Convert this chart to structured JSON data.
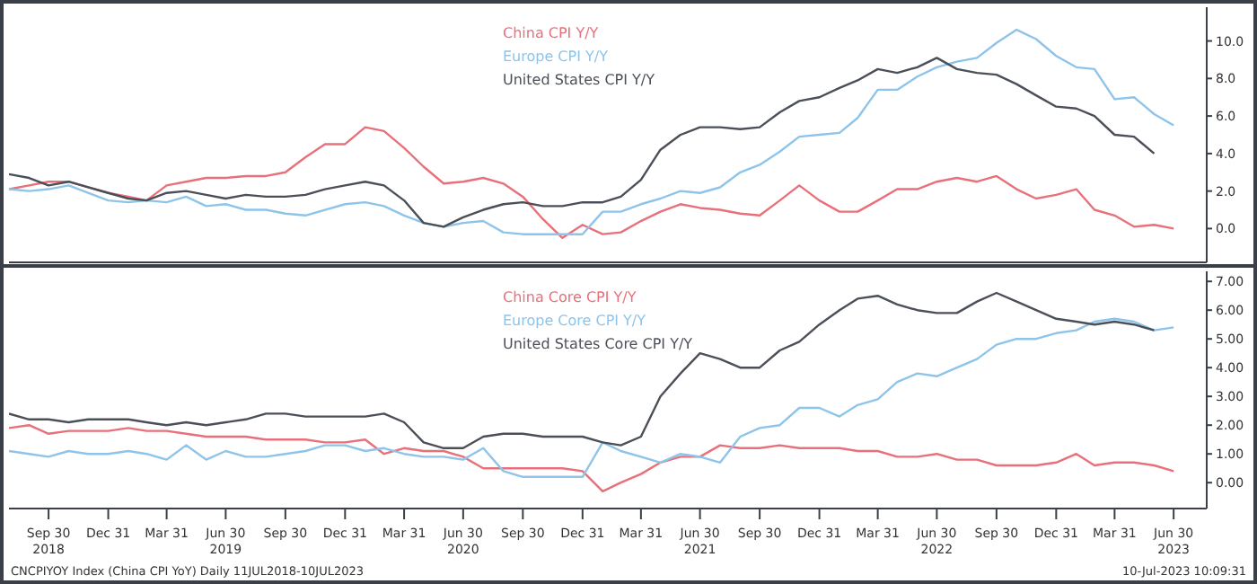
{
  "chart_data": [
    {
      "type": "line",
      "legend": "top",
      "tick_labels": "y",
      "x": [
        "2018-07-31",
        "2018-08-31",
        "2018-09-30",
        "2018-10-31",
        "2018-11-30",
        "2018-12-31",
        "2019-01-31",
        "2019-02-28",
        "2019-03-31",
        "2019-04-30",
        "2019-05-31",
        "2019-06-30",
        "2019-07-31",
        "2019-08-31",
        "2019-09-30",
        "2019-10-31",
        "2019-11-30",
        "2019-12-31",
        "2020-01-31",
        "2020-02-29",
        "2020-03-31",
        "2020-04-30",
        "2020-05-31",
        "2020-06-30",
        "2020-07-31",
        "2020-08-31",
        "2020-09-30",
        "2020-10-31",
        "2020-11-30",
        "2020-12-31",
        "2021-01-31",
        "2021-02-28",
        "2021-03-31",
        "2021-04-30",
        "2021-05-31",
        "2021-06-30",
        "2021-07-31",
        "2021-08-31",
        "2021-09-30",
        "2021-10-31",
        "2021-11-30",
        "2021-12-31",
        "2022-01-31",
        "2022-02-28",
        "2022-03-31",
        "2022-04-30",
        "2022-05-31",
        "2022-06-30",
        "2022-07-31",
        "2022-08-31",
        "2022-09-30",
        "2022-10-31",
        "2022-11-30",
        "2022-12-31",
        "2023-01-31",
        "2023-02-28",
        "2023-03-31",
        "2023-04-30",
        "2023-05-31",
        "2023-06-30"
      ],
      "series": [
        {
          "name": "China CPI Y/Y",
          "color": "#e8707a",
          "values": [
            2.1,
            2.3,
            2.5,
            2.5,
            2.2,
            1.9,
            1.7,
            1.5,
            2.3,
            2.5,
            2.7,
            2.7,
            2.8,
            2.8,
            3.0,
            3.8,
            4.5,
            4.5,
            5.4,
            5.2,
            4.3,
            3.3,
            2.4,
            2.5,
            2.7,
            2.4,
            1.7,
            0.5,
            -0.5,
            0.2,
            -0.3,
            -0.2,
            0.4,
            0.9,
            1.3,
            1.1,
            1.0,
            0.8,
            0.7,
            1.5,
            2.3,
            1.5,
            0.9,
            0.9,
            1.5,
            2.1,
            2.1,
            2.5,
            2.7,
            2.5,
            2.8,
            2.1,
            1.6,
            1.8,
            2.1,
            1.0,
            0.7,
            0.1,
            0.2,
            0.0
          ]
        },
        {
          "name": "Europe CPI Y/Y",
          "color": "#8ec4ea",
          "values": [
            2.1,
            2.0,
            2.1,
            2.3,
            1.9,
            1.5,
            1.4,
            1.5,
            1.4,
            1.7,
            1.2,
            1.3,
            1.0,
            1.0,
            0.8,
            0.7,
            1.0,
            1.3,
            1.4,
            1.2,
            0.7,
            0.3,
            0.1,
            0.3,
            0.4,
            -0.2,
            -0.3,
            -0.3,
            -0.3,
            -0.3,
            0.9,
            0.9,
            1.3,
            1.6,
            2.0,
            1.9,
            2.2,
            3.0,
            3.4,
            4.1,
            4.9,
            5.0,
            5.1,
            5.9,
            7.4,
            7.4,
            8.1,
            8.6,
            8.9,
            9.1,
            9.9,
            10.6,
            10.1,
            9.2,
            8.6,
            8.5,
            6.9,
            7.0,
            6.1,
            5.5
          ]
        },
        {
          "name": "United States CPI Y/Y",
          "color": "#4a4f58",
          "values": [
            2.9,
            2.7,
            2.3,
            2.5,
            2.2,
            1.9,
            1.6,
            1.5,
            1.9,
            2.0,
            1.8,
            1.6,
            1.8,
            1.7,
            1.7,
            1.8,
            2.1,
            2.3,
            2.5,
            2.3,
            1.5,
            0.3,
            0.1,
            0.6,
            1.0,
            1.3,
            1.4,
            1.2,
            1.2,
            1.4,
            1.4,
            1.7,
            2.6,
            4.2,
            5.0,
            5.4,
            5.4,
            5.3,
            5.4,
            6.2,
            6.8,
            7.0,
            7.5,
            7.9,
            8.5,
            8.3,
            8.6,
            9.1,
            8.5,
            8.3,
            8.2,
            7.7,
            7.1,
            6.5,
            6.4,
            6.0,
            5.0,
            4.9,
            4.0,
            null
          ]
        }
      ],
      "xlim": [
        "2018-07-31",
        "2023-08-20"
      ],
      "ylim": [
        -1.8,
        11.8
      ],
      "yticks": [
        {
          "value": 0,
          "label": "0.0"
        },
        {
          "value": 2,
          "label": "2.0"
        },
        {
          "value": 4,
          "label": "4.0"
        },
        {
          "value": 6,
          "label": "6.0"
        },
        {
          "value": 8,
          "label": "8.0"
        },
        {
          "value": 10,
          "label": "10.0"
        }
      ]
    },
    {
      "type": "line",
      "legend": "top",
      "x": [
        "2018-07-31",
        "2018-08-31",
        "2018-09-30",
        "2018-10-31",
        "2018-11-30",
        "2018-12-31",
        "2019-01-31",
        "2019-02-28",
        "2019-03-31",
        "2019-04-30",
        "2019-05-31",
        "2019-06-30",
        "2019-07-31",
        "2019-08-31",
        "2019-09-30",
        "2019-10-31",
        "2019-11-30",
        "2019-12-31",
        "2020-01-31",
        "2020-02-29",
        "2020-03-31",
        "2020-04-30",
        "2020-05-31",
        "2020-06-30",
        "2020-07-31",
        "2020-08-31",
        "2020-09-30",
        "2020-10-31",
        "2020-11-30",
        "2020-12-31",
        "2021-01-31",
        "2021-02-28",
        "2021-03-31",
        "2021-04-30",
        "2021-05-31",
        "2021-06-30",
        "2021-07-31",
        "2021-08-31",
        "2021-09-30",
        "2021-10-31",
        "2021-11-30",
        "2021-12-31",
        "2022-01-31",
        "2022-02-28",
        "2022-03-31",
        "2022-04-30",
        "2022-05-31",
        "2022-06-30",
        "2022-07-31",
        "2022-08-31",
        "2022-09-30",
        "2022-10-31",
        "2022-11-30",
        "2022-12-31",
        "2023-01-31",
        "2023-02-28",
        "2023-03-31",
        "2023-04-30",
        "2023-05-31",
        "2023-06-30"
      ],
      "series": [
        {
          "name": "China Core CPI Y/Y",
          "color": "#e8707a",
          "values": [
            1.9,
            2.0,
            1.7,
            1.8,
            1.8,
            1.8,
            1.9,
            1.8,
            1.8,
            1.7,
            1.6,
            1.6,
            1.6,
            1.5,
            1.5,
            1.5,
            1.4,
            1.4,
            1.5,
            1.0,
            1.2,
            1.1,
            1.1,
            0.9,
            0.5,
            0.5,
            0.5,
            0.5,
            0.5,
            0.4,
            -0.3,
            0.0,
            0.3,
            0.7,
            0.9,
            0.9,
            1.3,
            1.2,
            1.2,
            1.3,
            1.2,
            1.2,
            1.2,
            1.1,
            1.1,
            0.9,
            0.9,
            1.0,
            0.8,
            0.8,
            0.6,
            0.6,
            0.6,
            0.7,
            1.0,
            0.6,
            0.7,
            0.7,
            0.6,
            0.4
          ]
        },
        {
          "name": "Europe Core CPI Y/Y",
          "color": "#8ec4ea",
          "values": [
            1.1,
            1.0,
            0.9,
            1.1,
            1.0,
            1.0,
            1.1,
            1.0,
            0.8,
            1.3,
            0.8,
            1.1,
            0.9,
            0.9,
            1.0,
            1.1,
            1.3,
            1.3,
            1.1,
            1.2,
            1.0,
            0.9,
            0.9,
            0.8,
            1.2,
            0.4,
            0.2,
            0.2,
            0.2,
            0.2,
            1.4,
            1.1,
            0.9,
            0.7,
            1.0,
            0.9,
            0.7,
            1.6,
            1.9,
            2.0,
            2.6,
            2.6,
            2.3,
            2.7,
            2.9,
            3.5,
            3.8,
            3.7,
            4.0,
            4.3,
            4.8,
            5.0,
            5.0,
            5.2,
            5.3,
            5.6,
            5.7,
            5.6,
            5.3,
            5.4
          ]
        },
        {
          "name": "United States Core CPI Y/Y",
          "color": "#4a4f58",
          "values": [
            2.4,
            2.2,
            2.2,
            2.1,
            2.2,
            2.2,
            2.2,
            2.1,
            2.0,
            2.1,
            2.0,
            2.1,
            2.2,
            2.4,
            2.4,
            2.3,
            2.3,
            2.3,
            2.3,
            2.4,
            2.1,
            1.4,
            1.2,
            1.2,
            1.6,
            1.7,
            1.7,
            1.6,
            1.6,
            1.6,
            1.4,
            1.3,
            1.6,
            3.0,
            3.8,
            4.5,
            4.3,
            4.0,
            4.0,
            4.6,
            4.9,
            5.5,
            6.0,
            6.4,
            6.5,
            6.2,
            6.0,
            5.9,
            5.9,
            6.3,
            6.6,
            6.3,
            6.0,
            5.7,
            5.6,
            5.5,
            5.6,
            5.5,
            5.3,
            null
          ]
        }
      ],
      "xlim": [
        "2018-07-31",
        "2023-08-20"
      ],
      "xticks": [
        {
          "value": "2018-09-30",
          "label": "Sep 30\n2018"
        },
        {
          "value": "2018-12-31",
          "label": "Dec 31"
        },
        {
          "value": "2019-03-31",
          "label": "Mar 31"
        },
        {
          "value": "2019-06-30",
          "label": "Jun 30\n2019"
        },
        {
          "value": "2019-09-30",
          "label": "Sep 30"
        },
        {
          "value": "2019-12-31",
          "label": "Dec 31"
        },
        {
          "value": "2020-03-31",
          "label": "Mar 31"
        },
        {
          "value": "2020-06-30",
          "label": "Jun 30\n2020"
        },
        {
          "value": "2020-09-30",
          "label": "Sep 30"
        },
        {
          "value": "2020-12-31",
          "label": "Dec 31"
        },
        {
          "value": "2021-03-31",
          "label": "Mar 31"
        },
        {
          "value": "2021-06-30",
          "label": "Jun 30\n2021"
        },
        {
          "value": "2021-09-30",
          "label": "Sep 30"
        },
        {
          "value": "2021-12-31",
          "label": "Dec 31"
        },
        {
          "value": "2022-03-31",
          "label": "Mar 31"
        },
        {
          "value": "2022-06-30",
          "label": "Jun 30\n2022"
        },
        {
          "value": "2022-09-30",
          "label": "Sep 30"
        },
        {
          "value": "2022-12-31",
          "label": "Dec 31"
        },
        {
          "value": "2023-03-31",
          "label": "Mar 31"
        },
        {
          "value": "2023-06-30",
          "label": "Jun 30\n2023"
        }
      ],
      "ylim": [
        -0.9,
        7.35
      ],
      "yticks": [
        {
          "value": 0,
          "label": "0.00"
        },
        {
          "value": 1,
          "label": "1.00"
        },
        {
          "value": 2,
          "label": "2.00"
        },
        {
          "value": 3,
          "label": "3.00"
        },
        {
          "value": 4,
          "label": "4.00"
        },
        {
          "value": 5,
          "label": "5.00"
        },
        {
          "value": 6,
          "label": "6.00"
        },
        {
          "value": 7,
          "label": "7.00"
        }
      ],
      "annotations": [
        "CNCPIYOY Index (China CPI YoY) Daily 11JUL2018-10JUL2023",
        "10-Jul-2023 10:09:31"
      ]
    }
  ]
}
